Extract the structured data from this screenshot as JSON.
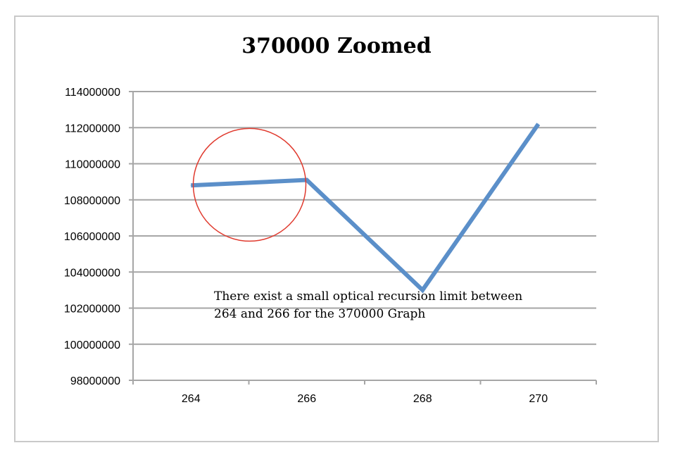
{
  "chart_data": {
    "type": "line",
    "title": "370000 Zoomed",
    "xlabel": "",
    "ylabel": "",
    "categories": [
      "264",
      "266",
      "268",
      "270"
    ],
    "series": [
      {
        "values": [
          108800000,
          109100000,
          103000000,
          112200000
        ],
        "color": "#5b8fc9"
      }
    ],
    "ylim": [
      98000000,
      114000000
    ],
    "yticks": [
      98000000,
      100000000,
      102000000,
      104000000,
      106000000,
      108000000,
      110000000,
      112000000,
      114000000
    ],
    "ytick_labels": [
      "98000000",
      "100000000",
      "102000000",
      "104000000",
      "106000000",
      "108000000",
      "110000000",
      "112000000",
      "114000000"
    ],
    "grid": true,
    "legend": "none",
    "annotation": {
      "lines": [
        "There exist a small optical recursion limit between",
        "264 and 266 for the 370000 Graph"
      ],
      "highlight_color": "#e03a2e"
    }
  }
}
